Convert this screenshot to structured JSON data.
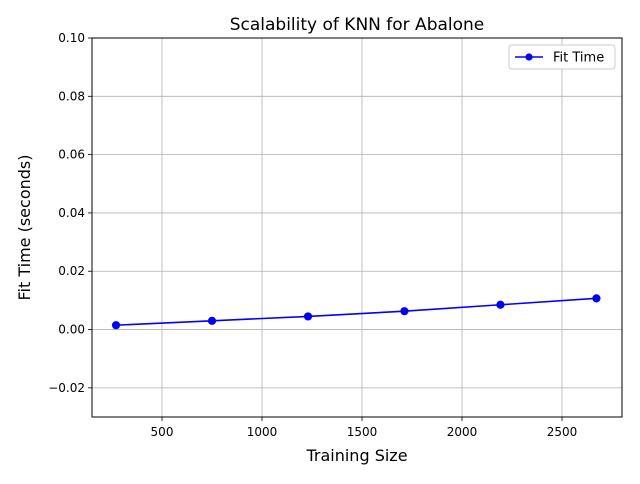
{
  "chart_data": {
    "type": "line",
    "title": "Scalability of KNN for Abalone",
    "xlabel": "Training Size",
    "ylabel": "Fit Time (seconds)",
    "xlim": [
      150,
      2800
    ],
    "ylim": [
      -0.03,
      0.1
    ],
    "x_ticks": [
      500,
      1000,
      1500,
      2000,
      2500
    ],
    "x_tick_labels": [
      "500",
      "1000",
      "1500",
      "2000",
      "2500"
    ],
    "y_ticks": [
      -0.02,
      0.0,
      0.02,
      0.04,
      0.06,
      0.08,
      0.1
    ],
    "y_tick_labels": [
      "−0.02",
      "0.00",
      "0.02",
      "0.04",
      "0.06",
      "0.08",
      "0.10"
    ],
    "grid": true,
    "legend_position": "top-right",
    "series": [
      {
        "name": "Fit Time",
        "color": "#0000ff",
        "marker": "circle",
        "x": [
          270,
          750,
          1230,
          1712,
          2192,
          2672
        ],
        "y": [
          0.0015,
          0.003,
          0.0045,
          0.0063,
          0.0085,
          0.0107
        ]
      }
    ]
  }
}
